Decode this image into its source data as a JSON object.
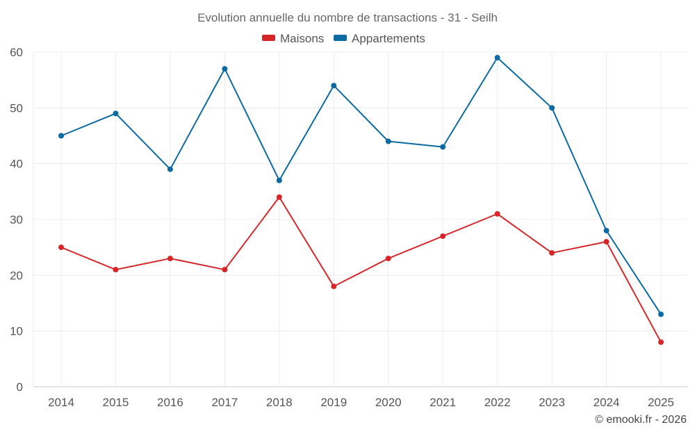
{
  "chart_data": {
    "type": "line",
    "title": "Evolution annuelle du nombre de transactions - 31 - Seilh",
    "categories": [
      "2014",
      "2015",
      "2016",
      "2017",
      "2018",
      "2019",
      "2020",
      "2021",
      "2022",
      "2023",
      "2024",
      "2025"
    ],
    "series": [
      {
        "name": "Maisons",
        "color": "#d62728",
        "values": [
          25,
          21,
          23,
          21,
          34,
          18,
          23,
          27,
          31,
          24,
          26,
          8
        ]
      },
      {
        "name": "Appartements",
        "color": "#0b6aa2",
        "values": [
          45,
          49,
          39,
          57,
          37,
          54,
          44,
          43,
          59,
          50,
          28,
          13
        ]
      }
    ],
    "ylim": [
      0,
      60
    ],
    "yticks": [
      0,
      10,
      20,
      30,
      40,
      50,
      60
    ],
    "xlabel": "",
    "ylabel": "",
    "grid": true,
    "legend_position": "top-center"
  },
  "credit": "© emooki.fr - 2026"
}
